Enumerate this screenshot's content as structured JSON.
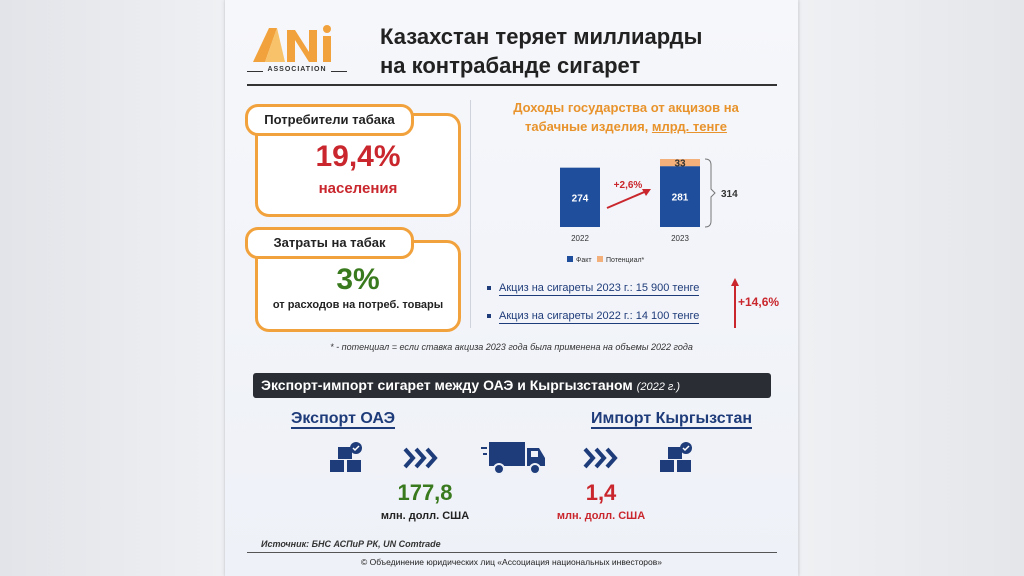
{
  "logo": {
    "mark": "ANI",
    "subtitle": "ASSOCIATION"
  },
  "title": {
    "line1": "Казахстан теряет миллиарды",
    "line2": "на контрабанде сигарет"
  },
  "consumers": {
    "label": "Потребители табака",
    "value": "19,4%",
    "sub": "населения"
  },
  "spending": {
    "label": "Затраты на табак",
    "value": "3%",
    "sub": "от расходов на потреб. товары"
  },
  "chart_title": {
    "line1": "Доходы государства от акцизов на",
    "line2a": "табачные изделия, ",
    "line2b": "млрд. тенге"
  },
  "chart_data": {
    "type": "bar",
    "categories": [
      "2022",
      "2023"
    ],
    "series": [
      {
        "name": "Факт",
        "values": [
          274,
          281
        ],
        "color": "#1f4e9c"
      },
      {
        "name": "Потенциал*",
        "values": [
          0,
          33
        ],
        "color": "#f3b07a"
      }
    ],
    "growth_label": "+2,6%",
    "total_label": "314",
    "ylim": [
      0,
      314
    ]
  },
  "bullets": [
    "Акциз на сигареты 2023 г.: 15 900 тенге",
    "Акциз на сигареты 2022 г.: 14 100 тенге"
  ],
  "excise_growth": "+14,6%",
  "footnote": "* - потенциал = если ставка акциза 2023 года была применена на объемы 2022 года",
  "banner": {
    "text": "Экспорт-импорт сигарет между ОАЭ и Кыргызстаном ",
    "year": "(2022 г.)"
  },
  "export": {
    "heading": "Экспорт ОАЭ",
    "value": "177,8",
    "unit": "млн. долл. США"
  },
  "import": {
    "heading": "Импорт Кыргызстан",
    "value": "1,4",
    "unit": "млн. долл. США"
  },
  "source": "Источник: БНС АСПиР РК, UN Comtrade",
  "copyright": "© Объединение юридических лиц «Ассоциация национальных инвесторов»",
  "colors": {
    "orange": "#f2a23c",
    "red": "#c9272d",
    "green": "#3a7a1f",
    "navy": "#1f3c7a"
  }
}
